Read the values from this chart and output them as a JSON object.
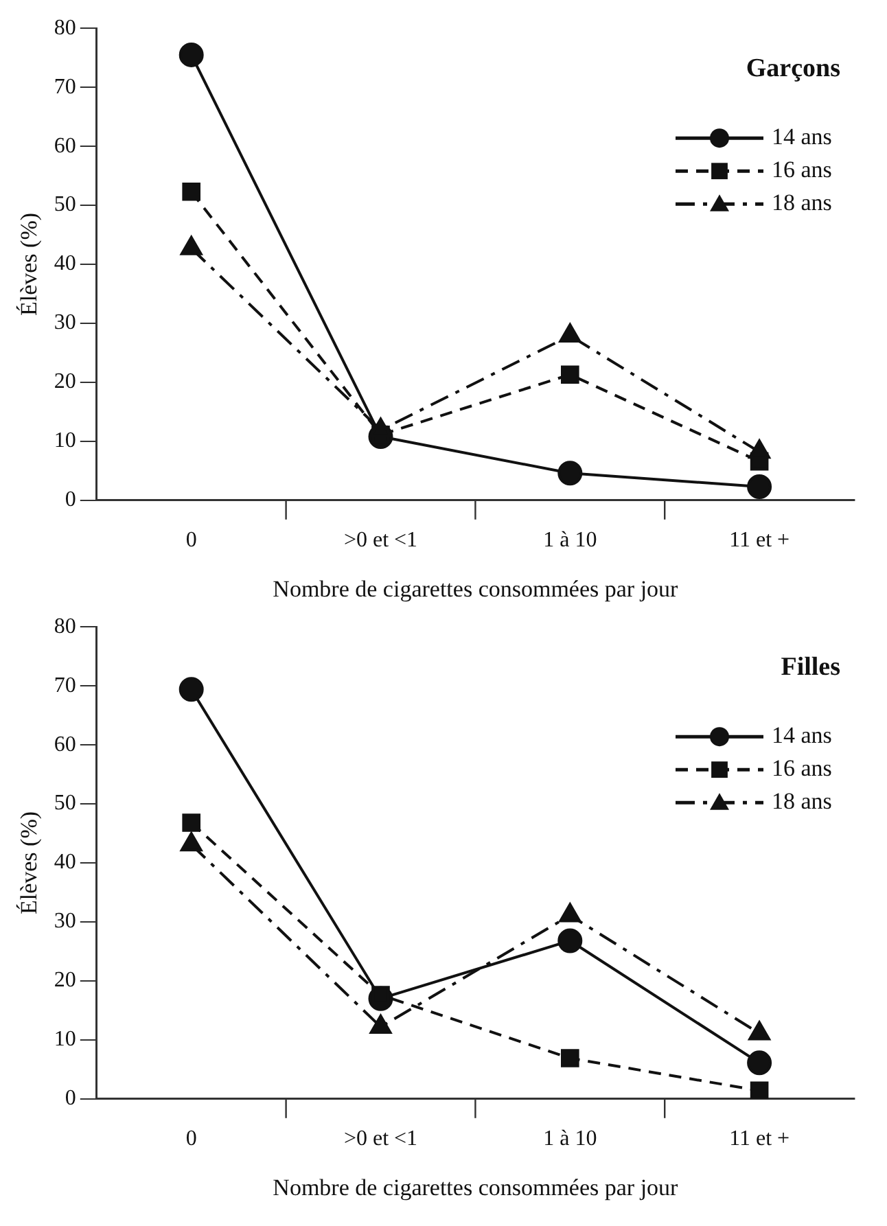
{
  "chart_data": [
    {
      "type": "line",
      "title": "Garçons",
      "xlabel": "Nombre de cigarettes consommées par jour",
      "ylabel": "Élèves (%)",
      "categories": [
        "0",
        ">0 et <1",
        "1 à 10",
        "11 et +"
      ],
      "ylim": [
        0,
        80
      ],
      "yticks": [
        0,
        10,
        20,
        30,
        40,
        50,
        60,
        70,
        80
      ],
      "grid": false,
      "legend": "top right",
      "series": [
        {
          "name": "14 ans",
          "color": "#111111",
          "marker": "circle",
          "line_style": "solid",
          "values": [
            75.5,
            10.8,
            4.6,
            2.3
          ]
        },
        {
          "name": "16 ans",
          "color": "#111111",
          "marker": "square",
          "line_style": "dashed",
          "values": [
            52.3,
            11.1,
            21.3,
            6.6
          ]
        },
        {
          "name": "18 ans",
          "color": "#111111",
          "marker": "triangle",
          "line_style": "dotted",
          "values": [
            42.7,
            11.9,
            27.9,
            8.2
          ]
        }
      ]
    },
    {
      "type": "line",
      "title": "Filles",
      "xlabel": "Nombre de cigarettes consommées par jour",
      "ylabel": "Élèves (%)",
      "categories": [
        "0",
        ">0 et <1",
        "1 à 10",
        "11 et +"
      ],
      "ylim": [
        0,
        80
      ],
      "yticks": [
        0,
        10,
        20,
        30,
        40,
        50,
        60,
        70,
        80
      ],
      "grid": false,
      "legend": "top right",
      "series": [
        {
          "name": "14 ans",
          "color": "#111111",
          "marker": "circle",
          "line_style": "solid",
          "values": [
            69.4,
            17.0,
            26.8,
            6.1
          ]
        },
        {
          "name": "16 ans",
          "color": "#111111",
          "marker": "square",
          "line_style": "dashed",
          "values": [
            46.8,
            17.6,
            6.9,
            1.4
          ]
        },
        {
          "name": "18 ans",
          "color": "#111111",
          "marker": "triangle",
          "line_style": "dotted",
          "values": [
            43.1,
            12.2,
            31.1,
            11.1
          ]
        }
      ]
    }
  ]
}
